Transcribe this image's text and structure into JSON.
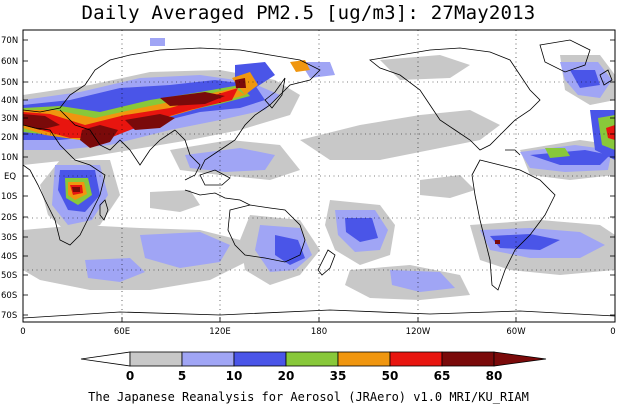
{
  "title": "Daily Averaged PM2.5 [ug/m3]: 27May2013",
  "footer": "The Japanese Reanalysis for Aerosol (JRAero) v1.0 MRI/KU_RIAM",
  "lat_labels": [
    "70N",
    "60N",
    "50N",
    "40N",
    "30N",
    "20N",
    "10N",
    "EQ",
    "10S",
    "20S",
    "30S",
    "40S",
    "50S",
    "60S",
    "70S"
  ],
  "lon_labels": [
    "0",
    "60E",
    "120E",
    "180",
    "120W",
    "60W",
    "0"
  ],
  "colorbar": {
    "labels": [
      "0",
      "5",
      "10",
      "20",
      "35",
      "50",
      "65",
      "80"
    ],
    "colors": [
      "#ffffff",
      "#c8c8c8",
      "#a0a5f5",
      "#4a55e8",
      "#88c83a",
      "#f0960f",
      "#e8150f",
      "#7a0a0a"
    ]
  }
}
